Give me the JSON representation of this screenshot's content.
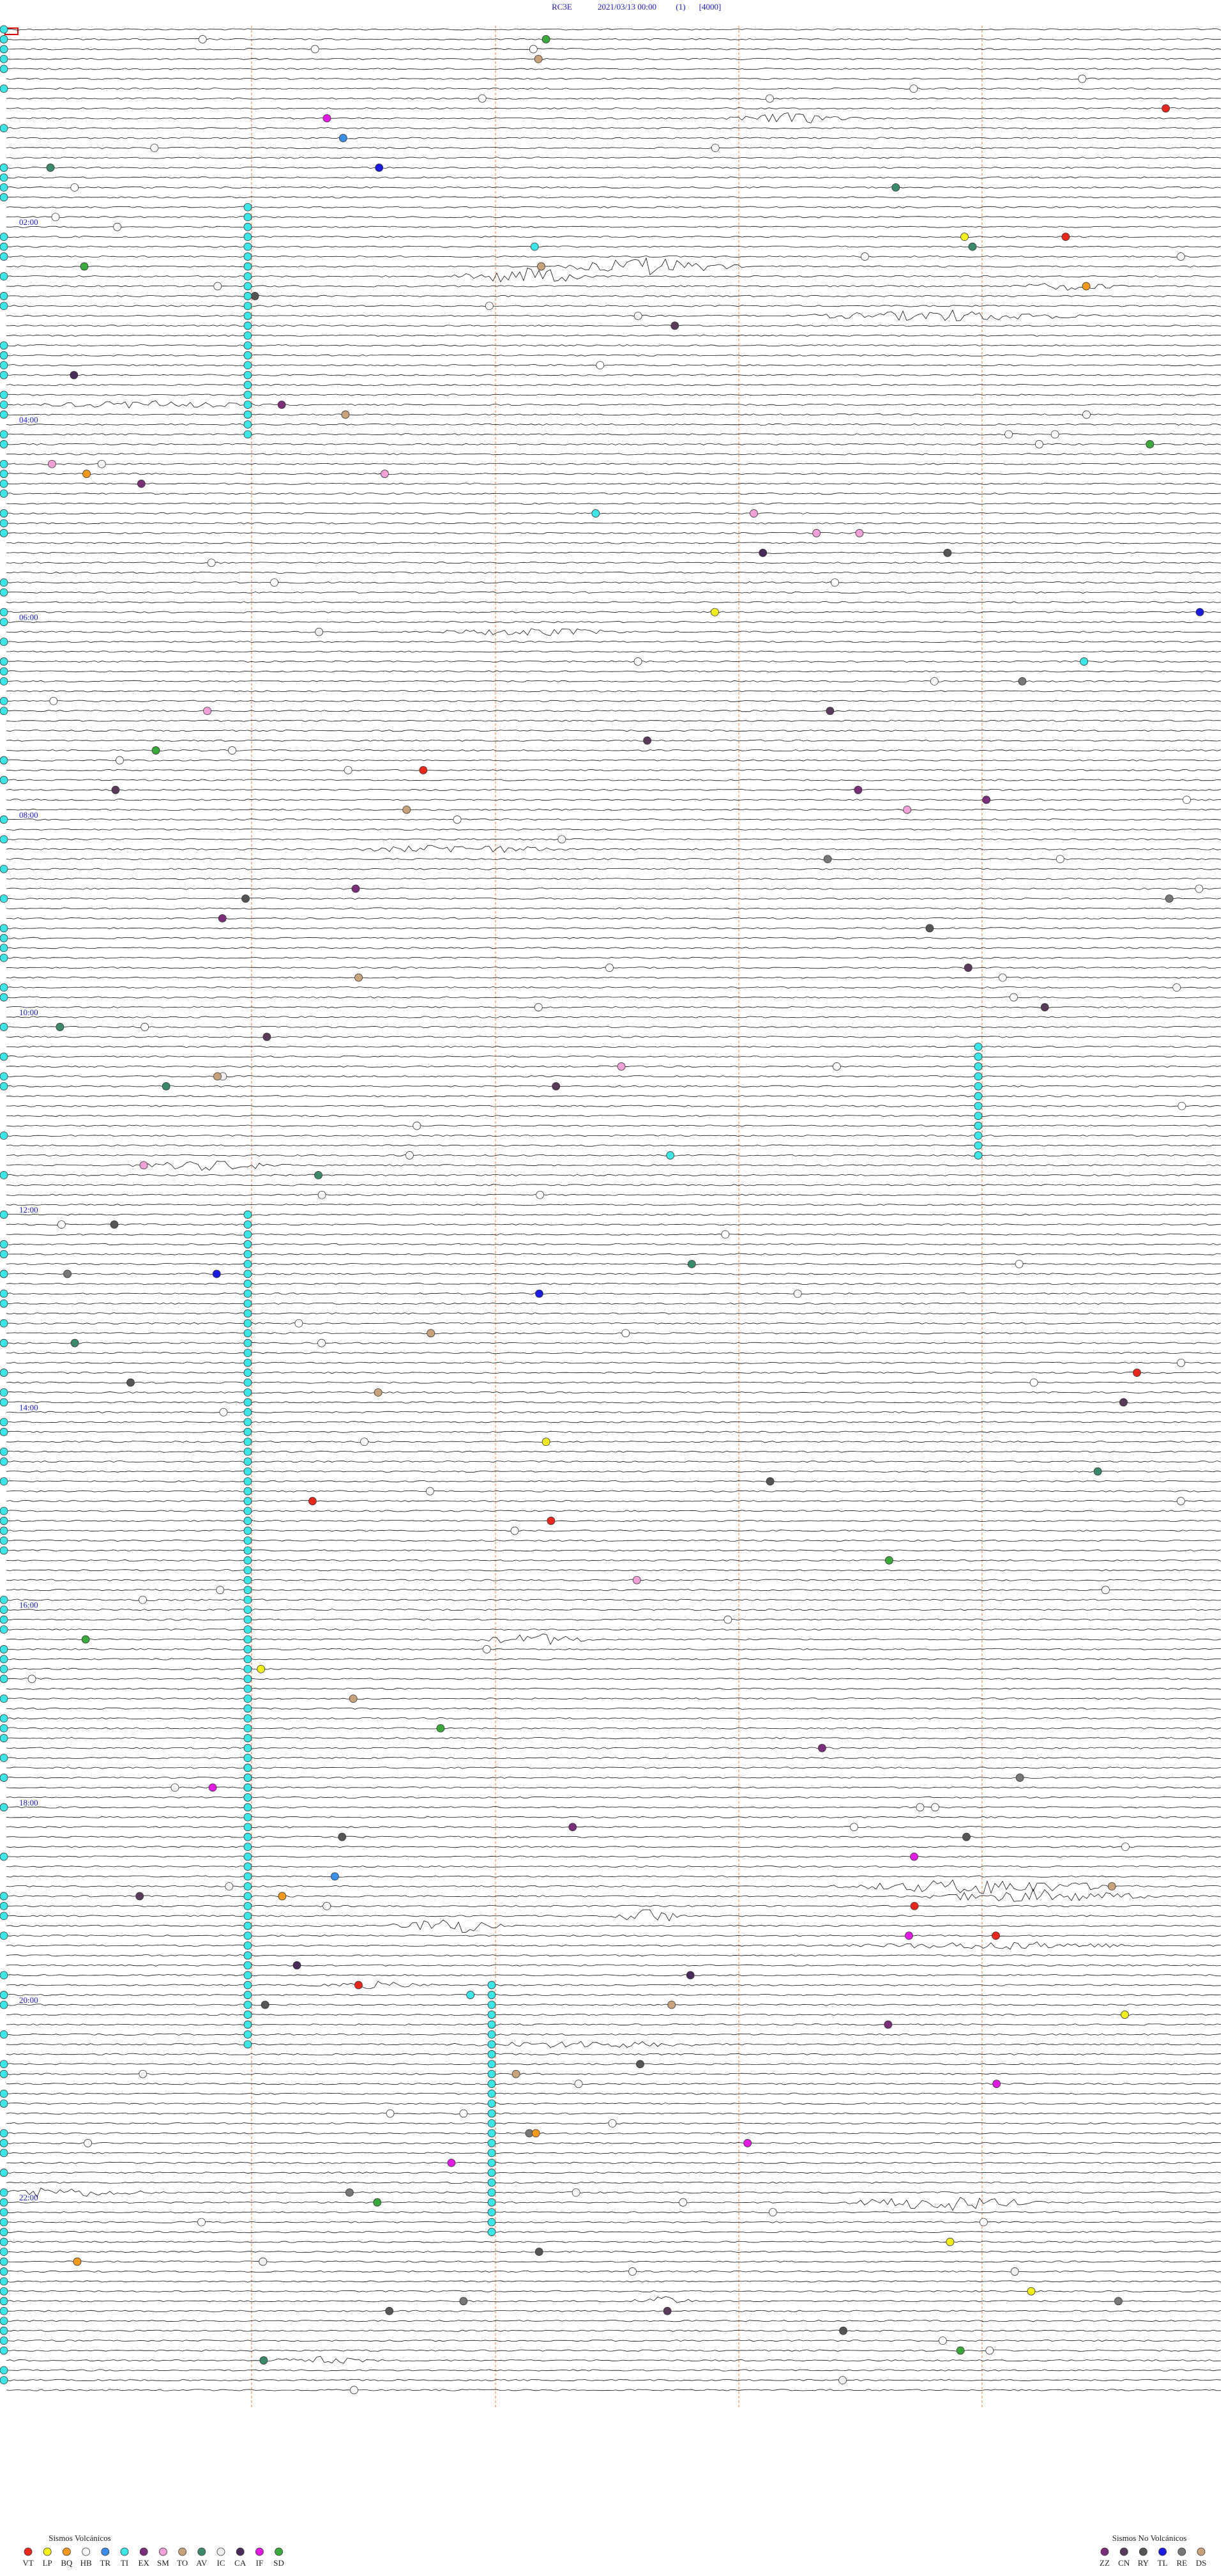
{
  "header": {
    "station": "RC3E",
    "datetime": "2021/03/13 00:00",
    "channel": "(1)",
    "scale": "[4000]"
  },
  "time_labels": [
    "02:00",
    "04:00",
    "06:00",
    "08:00",
    "10:00",
    "12:00",
    "14:00",
    "16:00",
    "18:00",
    "20:00",
    "22:00"
  ],
  "legend": {
    "volcanic": {
      "title": "Sismos Volcánicos",
      "codes": [
        {
          "code": "VT",
          "color": "#e8261c"
        },
        {
          "code": "LP",
          "color": "#f5ef1a"
        },
        {
          "code": "BQ",
          "color": "#f39a1c"
        },
        {
          "code": "HB",
          "color": "#ffffff"
        },
        {
          "code": "TR",
          "color": "#3a8ee8"
        },
        {
          "code": "TI",
          "color": "#3ce6e6"
        },
        {
          "code": "EX",
          "color": "#7a2e7a"
        },
        {
          "code": "SM",
          "color": "#f2a0d8"
        },
        {
          "code": "TO",
          "color": "#c8a27a"
        },
        {
          "code": "AV",
          "color": "#3a8a6a"
        },
        {
          "code": "IC",
          "color": "#eeeeee"
        },
        {
          "code": "CA",
          "color": "#4a2a5a"
        },
        {
          "code": "IF",
          "color": "#e01ae0"
        },
        {
          "code": "SD",
          "color": "#3aa83a"
        }
      ]
    },
    "non_volcanic": {
      "title": "Sismos No Volcánicos",
      "codes": [
        {
          "code": "ZZ",
          "color": "#7a2e7a"
        },
        {
          "code": "CN",
          "color": "#5a3a5a"
        },
        {
          "code": "RY",
          "color": "#555555"
        },
        {
          "code": "TL",
          "color": "#1a1ae0"
        },
        {
          "code": "RE",
          "color": "#777777"
        },
        {
          "code": "DS",
          "color": "#c8a27a"
        }
      ]
    }
  }
}
